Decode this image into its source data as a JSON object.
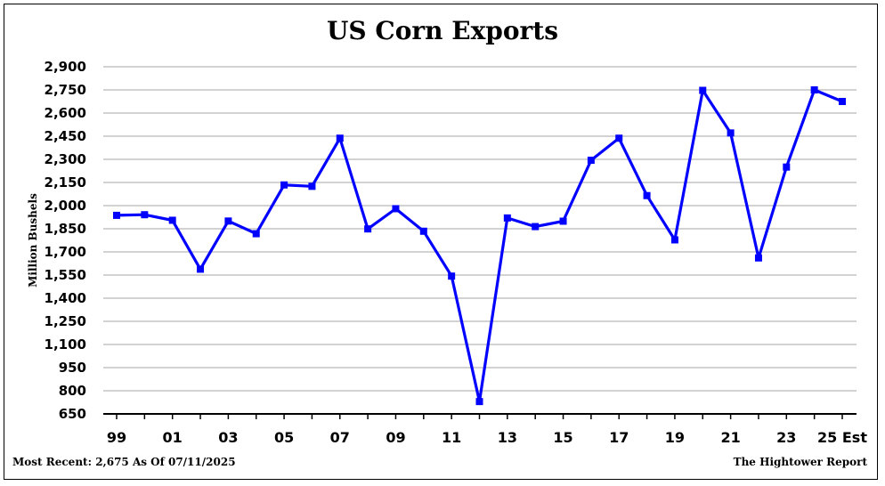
{
  "chart_data": {
    "type": "line",
    "title": "US Corn Exports",
    "ylabel": "Million Bushels",
    "xlabel": "",
    "ylim": [
      650,
      2900
    ],
    "yticks": [
      650,
      800,
      950,
      1100,
      1250,
      1400,
      1550,
      1700,
      1850,
      2000,
      2150,
      2300,
      2450,
      2600,
      2750,
      2900
    ],
    "ytick_labels": [
      "650",
      "800",
      "950",
      "1,100",
      "1,250",
      "1,400",
      "1,550",
      "1,700",
      "1,850",
      "2,000",
      "2,150",
      "2,300",
      "2,450",
      "2,600",
      "2,750",
      "2,900"
    ],
    "x": [
      "99",
      "00",
      "01",
      "02",
      "03",
      "04",
      "05",
      "06",
      "07",
      "08",
      "09",
      "10",
      "11",
      "12",
      "13",
      "14",
      "15",
      "16",
      "17",
      "18",
      "19",
      "20",
      "21",
      "22",
      "23",
      "24",
      "25"
    ],
    "xtick_labels": [
      "99",
      "",
      "01",
      "",
      "03",
      "",
      "05",
      "",
      "07",
      "",
      "09",
      "",
      "11",
      "",
      "13",
      "",
      "15",
      "",
      "17",
      "",
      "19",
      "",
      "21",
      "",
      "23",
      "",
      "25 Est"
    ],
    "series": [
      {
        "values": [
          1937,
          1941,
          1905,
          1588,
          1900,
          1818,
          2134,
          2125,
          2437,
          1849,
          1980,
          1834,
          1543,
          730,
          1920,
          1864,
          1899,
          2294,
          2437,
          2065,
          1778,
          2747,
          2471,
          1661,
          2250,
          2750,
          2675
        ],
        "color": "#0000ff"
      }
    ],
    "grid": true,
    "legend": "none"
  },
  "footer": {
    "most_recent": "Most Recent: 2,675 As Of 07/11/2025",
    "source": "The Hightower Report"
  }
}
